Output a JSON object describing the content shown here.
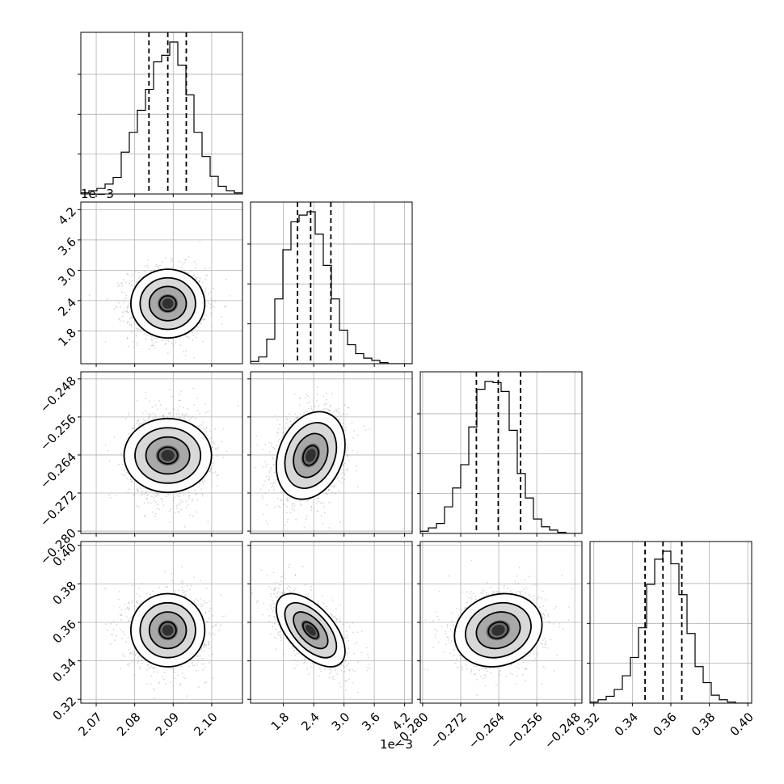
{
  "chart_data": {
    "type": "corner",
    "title": "",
    "parameters": [
      {
        "range": [
          2.066,
          2.108
        ],
        "scale_label": "",
        "ticks": [
          2.07,
          2.08,
          2.09,
          2.1
        ],
        "tick_labels": [
          "2.07",
          "2.08",
          "2.09",
          "2.10"
        ],
        "hist_x": [
          2.066,
          2.0681,
          2.0702,
          2.0723,
          2.0744,
          2.0765,
          2.0786,
          2.0807,
          2.0828,
          2.0849,
          2.087,
          2.0891,
          2.0912,
          2.0933,
          2.0954,
          2.0975,
          2.0996,
          2.1017,
          2.1038,
          2.1059
        ],
        "hist_counts": [
          1,
          3,
          5,
          9,
          15,
          38,
          56,
          76,
          95,
          120,
          126,
          138,
          117,
          90,
          56,
          34,
          16,
          7,
          3,
          1
        ],
        "quantiles": [
          2.0837,
          2.0886,
          2.0934
        ],
        "center": 2.0886,
        "sigma": 0.0048
      },
      {
        "range": [
          0.00115,
          0.00435
        ],
        "scale_label": "1e−3",
        "ticks": [
          0.0018,
          0.0024,
          0.003,
          0.0036,
          0.0042
        ],
        "tick_labels": [
          "1.8",
          "2.4",
          "3.0",
          "3.6",
          "4.2"
        ],
        "hist_x": [
          0.00115,
          0.00131,
          0.00147,
          0.00163,
          0.00179,
          0.00195,
          0.00211,
          0.00227,
          0.00243,
          0.00259,
          0.00275,
          0.00291,
          0.00307,
          0.00323,
          0.00339,
          0.00355,
          0.00371,
          0.00387,
          0.00403,
          0.00419
        ],
        "hist_counts": [
          2,
          6,
          22,
          58,
          102,
          127,
          133,
          136,
          116,
          88,
          58,
          30,
          17,
          9,
          5,
          3,
          1,
          0,
          0,
          0
        ],
        "quantiles": [
          0.00208,
          0.00234,
          0.00274
        ],
        "center": 0.00234,
        "sigma": 0.00034
      },
      {
        "range": [
          -0.2805,
          -0.2465
        ],
        "scale_label": "",
        "ticks": [
          -0.28,
          -0.272,
          -0.264,
          -0.256,
          -0.248
        ],
        "tick_labels": [
          "−0.280",
          "−0.272",
          "−0.264",
          "−0.256",
          "−0.248"
        ],
        "hist_x": [
          -0.2805,
          -0.2788,
          -0.2771,
          -0.2754,
          -0.2737,
          -0.272,
          -0.2703,
          -0.2686,
          -0.2669,
          -0.2652,
          -0.2635,
          -0.2618,
          -0.2601,
          -0.2584,
          -0.2567,
          -0.255,
          -0.2533,
          -0.2516,
          -0.2499,
          -0.2482
        ],
        "hist_counts": [
          2,
          5,
          9,
          24,
          41,
          62,
          96,
          130,
          137,
          136,
          128,
          93,
          54,
          32,
          13,
          6,
          3,
          1,
          0,
          0
        ],
        "quantiles": [
          -0.2687,
          -0.2641,
          -0.2594
        ],
        "center": -0.2641,
        "sigma": 0.0046
      },
      {
        "range": [
          0.318,
          0.402
        ],
        "scale_label": "",
        "ticks": [
          0.32,
          0.34,
          0.36,
          0.38,
          0.4
        ],
        "tick_labels": [
          "0.32",
          "0.34",
          "0.36",
          "0.38",
          "0.40"
        ],
        "hist_x": [
          0.318,
          0.3222,
          0.3264,
          0.3306,
          0.3348,
          0.339,
          0.3432,
          0.3474,
          0.3516,
          0.3558,
          0.36,
          0.3642,
          0.3684,
          0.3726,
          0.3768,
          0.381,
          0.3852,
          0.3894,
          0.3936,
          0.3978
        ],
        "hist_counts": [
          1,
          3,
          6,
          12,
          24,
          40,
          66,
          104,
          126,
          133,
          122,
          95,
          61,
          32,
          18,
          7,
          3,
          1,
          0,
          0
        ],
        "quantiles": [
          0.3466,
          0.3559,
          0.3657
        ],
        "center": 0.3559,
        "sigma": 0.0095
      }
    ],
    "correlations": {
      "1-0": 0.0,
      "2-0": 0.0,
      "2-1": 0.25,
      "3-0": 0.0,
      "3-1": -0.58,
      "3-2": 0.15
    },
    "grid": true,
    "colors": {
      "line": "#000000",
      "grid": "#b0b0b0",
      "scatter": "#8c8c8c"
    }
  }
}
